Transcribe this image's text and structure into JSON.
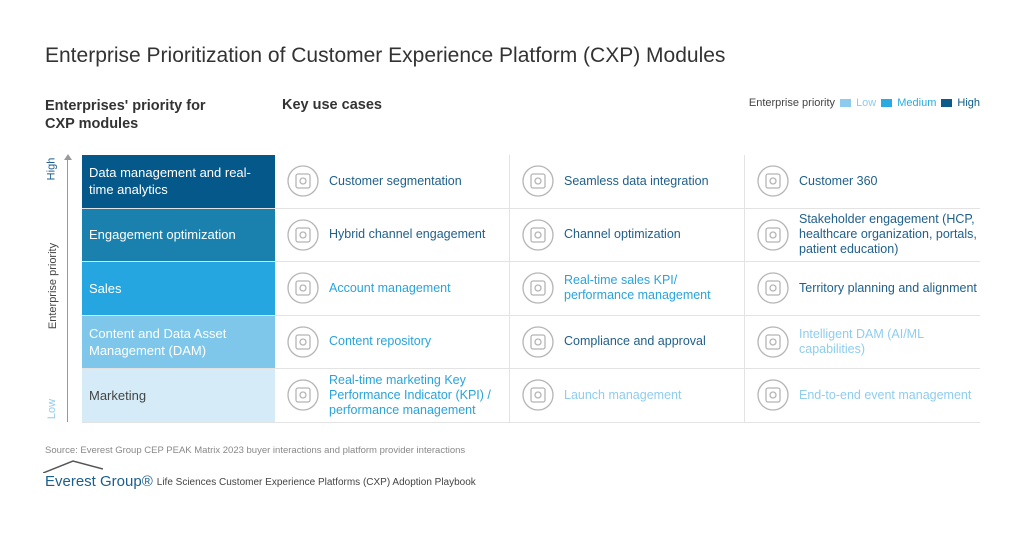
{
  "title": "Enterprise Prioritization of Customer Experience Platform (CXP) Modules",
  "left_header": "Enterprises' priority for CXP modules",
  "right_header": "Key use cases",
  "legend": {
    "label": "Enterprise priority",
    "items": [
      {
        "label": "Low",
        "color": "#8ccbee"
      },
      {
        "label": "Medium",
        "color": "#29abe2"
      },
      {
        "label": "High",
        "color": "#0b5a8a"
      }
    ]
  },
  "axis": {
    "label": "Enterprise priority",
    "high": "High",
    "low": "Low"
  },
  "colors": {
    "high": "#1f5f8b",
    "medium": "#29a3dc",
    "low": "#8fcdee"
  },
  "rows": [
    {
      "module": "Data management and real-time analytics",
      "bg": "#04588a",
      "fg": "#ffffff",
      "cells": [
        {
          "label": "Customer segmentation",
          "priority": "high",
          "icon": "people-presentation-icon"
        },
        {
          "label": "Seamless data integration",
          "priority": "high",
          "icon": "data-network-icon"
        },
        {
          "label": "Customer 360",
          "priority": "high",
          "icon": "customer-360-icon"
        }
      ]
    },
    {
      "module": "Engagement optimization",
      "bg": "#1a80ae",
      "fg": "#ffffff",
      "cells": [
        {
          "label": "Hybrid channel engagement",
          "priority": "high",
          "icon": "devices-icon"
        },
        {
          "label": "Channel optimization",
          "priority": "high",
          "icon": "channel-hub-icon"
        },
        {
          "label": "Stakeholder engagement (HCP, healthcare organization, portals, patient education)",
          "priority": "high",
          "icon": "stakeholder-network-icon"
        }
      ]
    },
    {
      "module": "Sales",
      "bg": "#26a6e0",
      "fg": "#ffffff",
      "cells": [
        {
          "label": "Account management",
          "priority": "medium",
          "icon": "account-calculator-icon"
        },
        {
          "label": "Real-time sales KPI/ performance management",
          "priority": "medium",
          "icon": "gauge-chart-icon"
        },
        {
          "label": "Territory planning and alignment",
          "priority": "high",
          "icon": "map-pin-icon"
        }
      ]
    },
    {
      "module": "Content and Data Asset Management (DAM)",
      "bg": "#7fc7ea",
      "fg": "#ffffff",
      "cells": [
        {
          "label": "Content repository",
          "priority": "medium",
          "icon": "document-database-icon"
        },
        {
          "label": "Compliance and approval",
          "priority": "high",
          "icon": "checklist-gavel-icon"
        },
        {
          "label": "Intelligent DAM (AI/ML capabilities)",
          "priority": "low",
          "icon": "brain-circuit-icon"
        }
      ]
    },
    {
      "module": "Marketing",
      "bg": "#d5ecf8",
      "fg": "#444444",
      "cells": [
        {
          "label": "Real-time marketing Key Performance Indicator (KPI) / performance management",
          "priority": "medium",
          "icon": "gauge-gear-icon"
        },
        {
          "label": "Launch management",
          "priority": "low",
          "icon": "lightbulb-rocket-icon"
        },
        {
          "label": "End-to-end event management",
          "priority": "low",
          "icon": "calendar-stars-icon"
        }
      ]
    }
  ],
  "source": "Source: Everest Group CEP PEAK Matrix 2023 buyer interactions and platform provider interactions",
  "footer": {
    "logo": "Everest Group®",
    "text": "Life Sciences Customer Experience Platforms (CXP) Adoption Playbook"
  }
}
